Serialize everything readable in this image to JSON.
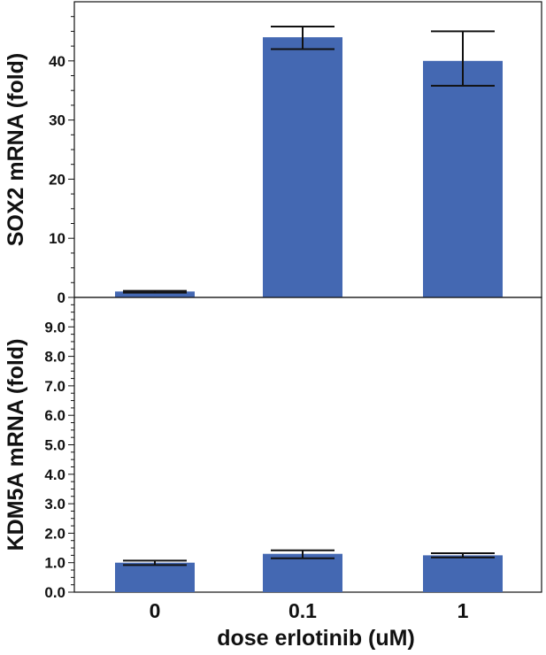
{
  "chart_data": [
    {
      "type": "bar",
      "categories": [
        "0",
        "0.1",
        "1"
      ],
      "values": [
        1.0,
        44.0,
        40.0
      ],
      "error_low": [
        0.8,
        42.0,
        35.8
      ],
      "error_high": [
        1.1,
        45.8,
        45.0
      ],
      "ylabel": "SOX2 mRNA (fold)",
      "ylim": [
        0,
        50
      ],
      "yticks": [
        "0",
        "10",
        "20",
        "30",
        "40"
      ],
      "bar_color": "#4468b2",
      "grid": false
    },
    {
      "type": "bar",
      "categories": [
        "0",
        "0.1",
        "1"
      ],
      "values": [
        1.0,
        1.3,
        1.25
      ],
      "error_low": [
        0.92,
        1.15,
        1.18
      ],
      "error_high": [
        1.07,
        1.42,
        1.32
      ],
      "ylabel": "KDM5A mRNA (fold)",
      "ylim": [
        0,
        10
      ],
      "yticks": [
        "0.0",
        "1.0",
        "2.0",
        "3.0",
        "4.0",
        "5.0",
        "6.0",
        "7.0",
        "8.0",
        "9.0"
      ],
      "xlabel": "dose erlotinib (uM)",
      "bar_color": "#4468b2",
      "grid": false
    }
  ]
}
